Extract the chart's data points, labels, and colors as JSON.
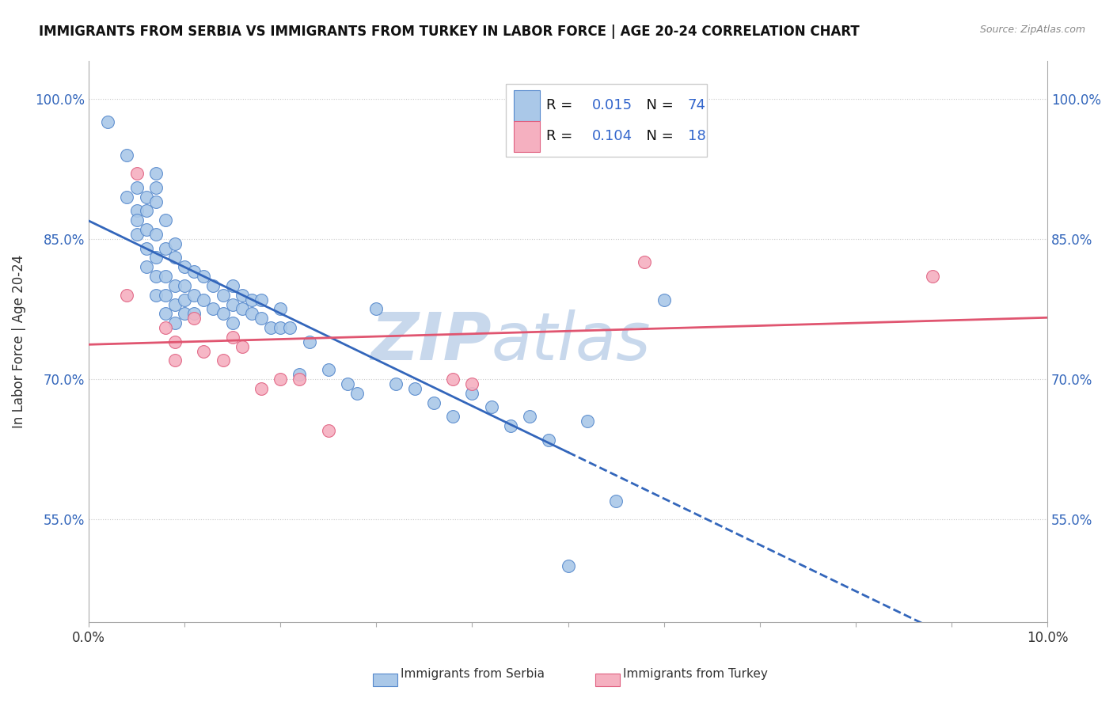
{
  "title": "IMMIGRANTS FROM SERBIA VS IMMIGRANTS FROM TURKEY IN LABOR FORCE | AGE 20-24 CORRELATION CHART",
  "source": "Source: ZipAtlas.com",
  "ylabel": "In Labor Force | Age 20-24",
  "xlim": [
    0.0,
    0.1
  ],
  "ylim": [
    0.44,
    1.04
  ],
  "yticks": [
    0.55,
    0.7,
    0.85,
    1.0
  ],
  "ytick_labels": [
    "55.0%",
    "70.0%",
    "85.0%",
    "100.0%"
  ],
  "xticks": [
    0.0,
    0.01,
    0.02,
    0.03,
    0.04,
    0.05,
    0.06,
    0.07,
    0.08,
    0.09,
    0.1
  ],
  "xtick_labels": [
    "0.0%",
    "",
    "",
    "",
    "",
    "",
    "",
    "",
    "",
    "",
    "10.0%"
  ],
  "serbia_R": "0.015",
  "serbia_N": "74",
  "turkey_R": "0.104",
  "turkey_N": "18",
  "serbia_color": "#aac8e8",
  "turkey_color": "#f5b0c0",
  "serbia_edge_color": "#5588cc",
  "turkey_edge_color": "#e06080",
  "serbia_line_color": "#3366bb",
  "turkey_line_color": "#e05570",
  "background_color": "#ffffff",
  "grid_color": "#cccccc",
  "serbia_x": [
    0.002,
    0.004,
    0.004,
    0.005,
    0.005,
    0.005,
    0.005,
    0.006,
    0.006,
    0.006,
    0.006,
    0.006,
    0.007,
    0.007,
    0.007,
    0.007,
    0.007,
    0.007,
    0.007,
    0.008,
    0.008,
    0.008,
    0.008,
    0.008,
    0.009,
    0.009,
    0.009,
    0.009,
    0.009,
    0.01,
    0.01,
    0.01,
    0.01,
    0.011,
    0.011,
    0.011,
    0.012,
    0.012,
    0.013,
    0.013,
    0.014,
    0.014,
    0.015,
    0.015,
    0.015,
    0.016,
    0.016,
    0.017,
    0.017,
    0.018,
    0.018,
    0.019,
    0.02,
    0.02,
    0.021,
    0.022,
    0.023,
    0.025,
    0.027,
    0.028,
    0.03,
    0.032,
    0.034,
    0.036,
    0.038,
    0.04,
    0.042,
    0.044,
    0.046,
    0.048,
    0.05,
    0.052,
    0.055,
    0.06
  ],
  "serbia_y": [
    0.975,
    0.94,
    0.895,
    0.905,
    0.88,
    0.87,
    0.855,
    0.895,
    0.88,
    0.86,
    0.84,
    0.82,
    0.92,
    0.905,
    0.89,
    0.855,
    0.83,
    0.81,
    0.79,
    0.87,
    0.84,
    0.81,
    0.79,
    0.77,
    0.845,
    0.83,
    0.8,
    0.78,
    0.76,
    0.82,
    0.8,
    0.785,
    0.77,
    0.815,
    0.79,
    0.77,
    0.81,
    0.785,
    0.8,
    0.775,
    0.79,
    0.77,
    0.8,
    0.78,
    0.76,
    0.79,
    0.775,
    0.785,
    0.77,
    0.785,
    0.765,
    0.755,
    0.775,
    0.755,
    0.755,
    0.705,
    0.74,
    0.71,
    0.695,
    0.685,
    0.775,
    0.695,
    0.69,
    0.675,
    0.66,
    0.685,
    0.67,
    0.65,
    0.66,
    0.635,
    0.5,
    0.655,
    0.57,
    0.785
  ],
  "turkey_x": [
    0.004,
    0.005,
    0.008,
    0.009,
    0.009,
    0.011,
    0.012,
    0.014,
    0.015,
    0.016,
    0.018,
    0.02,
    0.022,
    0.025,
    0.038,
    0.04,
    0.058,
    0.088
  ],
  "turkey_y": [
    0.79,
    0.92,
    0.755,
    0.74,
    0.72,
    0.765,
    0.73,
    0.72,
    0.745,
    0.735,
    0.69,
    0.7,
    0.7,
    0.645,
    0.7,
    0.695,
    0.825,
    0.81
  ],
  "watermark_text": "ZIP",
  "watermark_text2": "atlas",
  "watermark_color": "#c8d8ec"
}
